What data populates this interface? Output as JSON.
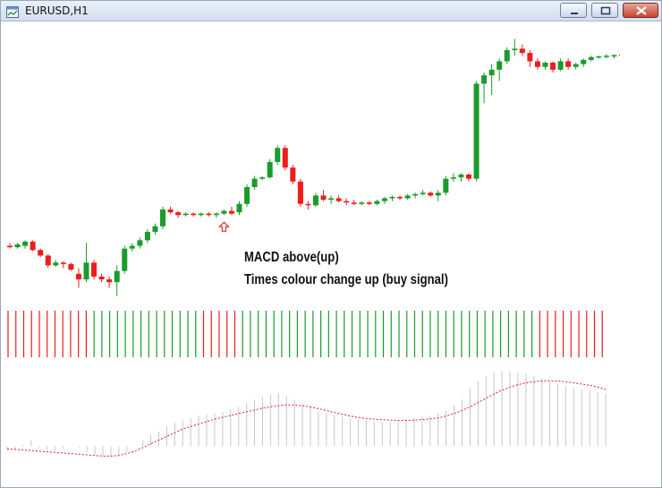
{
  "window": {
    "title": "EURUSD,H1",
    "controls": [
      "minimize",
      "maximize",
      "close"
    ],
    "icons": {
      "app": "chart-window-icon",
      "min": "minimize-icon",
      "max": "maximize-icon",
      "close": "close-icon"
    }
  },
  "colors": {
    "bull": "#1a9b2b",
    "bear": "#ee1c1c",
    "histogram_gray": "#c8c8c8",
    "signal_line": "#e02020"
  },
  "annotations": {
    "line1": "MACD above(up)",
    "line2": "Times colour change up (buy signal)"
  },
  "chart_data": [
    {
      "type": "candlestick",
      "symbol": "EURUSD",
      "timeframe": "H1",
      "description_values": "relative price level 0-100 (no price axis shown)",
      "candles": [
        {
          "o": 40,
          "h": 41,
          "l": 39,
          "c": 39.5
        },
        {
          "o": 39.5,
          "h": 41,
          "l": 39,
          "c": 40.5
        },
        {
          "o": 40,
          "h": 42,
          "l": 39,
          "c": 41.5
        },
        {
          "o": 41.5,
          "h": 42,
          "l": 38,
          "c": 38.5
        },
        {
          "o": 38.5,
          "h": 39,
          "l": 36,
          "c": 36.5
        },
        {
          "o": 36.5,
          "h": 37,
          "l": 32,
          "c": 33
        },
        {
          "o": 33,
          "h": 35,
          "l": 32.5,
          "c": 34
        },
        {
          "o": 34,
          "h": 34.5,
          "l": 32,
          "c": 33.5
        },
        {
          "o": 33.5,
          "h": 34,
          "l": 31,
          "c": 31.5
        },
        {
          "o": 30,
          "h": 32,
          "l": 25,
          "c": 28
        },
        {
          "o": 28,
          "h": 41,
          "l": 27,
          "c": 34
        },
        {
          "o": 34,
          "h": 35,
          "l": 28,
          "c": 29
        },
        {
          "o": 29,
          "h": 30,
          "l": 27,
          "c": 28
        },
        {
          "o": 28,
          "h": 29,
          "l": 25,
          "c": 27
        },
        {
          "o": 27,
          "h": 33,
          "l": 22,
          "c": 31
        },
        {
          "o": 31,
          "h": 40,
          "l": 30,
          "c": 39
        },
        {
          "o": 39,
          "h": 41,
          "l": 38,
          "c": 40
        },
        {
          "o": 40,
          "h": 43,
          "l": 39,
          "c": 42
        },
        {
          "o": 42,
          "h": 46,
          "l": 41,
          "c": 45
        },
        {
          "o": 45,
          "h": 48,
          "l": 44,
          "c": 47
        },
        {
          "o": 47,
          "h": 54,
          "l": 46,
          "c": 53
        },
        {
          "o": 53,
          "h": 54,
          "l": 51.5,
          "c": 52
        },
        {
          "o": 52,
          "h": 52.5,
          "l": 50,
          "c": 51
        },
        {
          "o": 51,
          "h": 52,
          "l": 50.5,
          "c": 51.5
        },
        {
          "o": 51.5,
          "h": 52,
          "l": 50.5,
          "c": 51
        },
        {
          "o": 51,
          "h": 52,
          "l": 50.5,
          "c": 51.5
        },
        {
          "o": 51.5,
          "h": 52,
          "l": 50.5,
          "c": 51
        },
        {
          "o": 51,
          "h": 52,
          "l": 50,
          "c": 51.5
        },
        {
          "o": 51.5,
          "h": 53,
          "l": 51,
          "c": 52.5
        },
        {
          "o": 52.5,
          "h": 54,
          "l": 51,
          "c": 51.5
        },
        {
          "o": 52,
          "h": 56,
          "l": 51,
          "c": 55
        },
        {
          "o": 55,
          "h": 62,
          "l": 54,
          "c": 61
        },
        {
          "o": 61,
          "h": 65,
          "l": 60,
          "c": 64
        },
        {
          "o": 64,
          "h": 65,
          "l": 63.5,
          "c": 64.5
        },
        {
          "o": 64.5,
          "h": 71,
          "l": 64,
          "c": 70
        },
        {
          "o": 70,
          "h": 76,
          "l": 69,
          "c": 75
        },
        {
          "o": 75,
          "h": 76,
          "l": 67,
          "c": 68
        },
        {
          "o": 68,
          "h": 69,
          "l": 62,
          "c": 63
        },
        {
          "o": 63,
          "h": 64,
          "l": 54,
          "c": 55
        },
        {
          "o": 55,
          "h": 56,
          "l": 53,
          "c": 54.5
        },
        {
          "o": 54.5,
          "h": 59,
          "l": 54,
          "c": 58
        },
        {
          "o": 58,
          "h": 60,
          "l": 56,
          "c": 56.5
        },
        {
          "o": 56.5,
          "h": 58,
          "l": 55,
          "c": 57
        },
        {
          "o": 57,
          "h": 58,
          "l": 55.5,
          "c": 56
        },
        {
          "o": 56,
          "h": 57,
          "l": 54.5,
          "c": 55.5
        },
        {
          "o": 55.5,
          "h": 56.5,
          "l": 54.5,
          "c": 55
        },
        {
          "o": 55,
          "h": 56,
          "l": 54.5,
          "c": 55.5
        },
        {
          "o": 55.5,
          "h": 56,
          "l": 54.5,
          "c": 55
        },
        {
          "o": 55,
          "h": 56.5,
          "l": 54.5,
          "c": 56
        },
        {
          "o": 56,
          "h": 57.5,
          "l": 55,
          "c": 57
        },
        {
          "o": 57,
          "h": 58,
          "l": 56,
          "c": 57.5
        },
        {
          "o": 57.5,
          "h": 58,
          "l": 56.5,
          "c": 57
        },
        {
          "o": 57,
          "h": 58.5,
          "l": 56.5,
          "c": 58
        },
        {
          "o": 58,
          "h": 59,
          "l": 57,
          "c": 58.5
        },
        {
          "o": 58.5,
          "h": 60,
          "l": 58,
          "c": 59
        },
        {
          "o": 59,
          "h": 59.5,
          "l": 57.5,
          "c": 58
        },
        {
          "o": 58,
          "h": 60,
          "l": 56,
          "c": 59
        },
        {
          "o": 59,
          "h": 65,
          "l": 58,
          "c": 64
        },
        {
          "o": 64,
          "h": 66,
          "l": 63,
          "c": 64.5
        },
        {
          "o": 64.5,
          "h": 66,
          "l": 63,
          "c": 65.5
        },
        {
          "o": 65.5,
          "h": 66,
          "l": 63,
          "c": 64
        },
        {
          "o": 64,
          "h": 99,
          "l": 63,
          "c": 98
        },
        {
          "o": 98,
          "h": 102,
          "l": 91,
          "c": 101
        },
        {
          "o": 101,
          "h": 105,
          "l": 94,
          "c": 103
        },
        {
          "o": 103,
          "h": 107,
          "l": 99,
          "c": 106
        },
        {
          "o": 106,
          "h": 111,
          "l": 105,
          "c": 110
        },
        {
          "o": 110,
          "h": 114,
          "l": 108,
          "c": 110.5
        },
        {
          "o": 110.5,
          "h": 112,
          "l": 108,
          "c": 109
        },
        {
          "o": 109,
          "h": 110,
          "l": 104,
          "c": 106
        },
        {
          "o": 106,
          "h": 107,
          "l": 103,
          "c": 104
        },
        {
          "o": 104,
          "h": 106,
          "l": 103,
          "c": 105.5
        },
        {
          "o": 105.5,
          "h": 106,
          "l": 102,
          "c": 103
        },
        {
          "o": 103,
          "h": 107,
          "l": 102.5,
          "c": 106
        },
        {
          "o": 106,
          "h": 107,
          "l": 103,
          "c": 104
        },
        {
          "o": 104,
          "h": 105.5,
          "l": 103,
          "c": 105
        },
        {
          "o": 105,
          "h": 107,
          "l": 104,
          "c": 106.5
        },
        {
          "o": 106.5,
          "h": 108,
          "l": 106,
          "c": 107.5
        },
        {
          "o": 107.5,
          "h": 108,
          "l": 107,
          "c": 107.8
        },
        {
          "o": 107.8,
          "h": 108.5,
          "l": 107,
          "c": 108
        },
        {
          "o": 108,
          "h": 108.5,
          "l": 107,
          "c": 108.2
        },
        {
          "o": 108.2,
          "h": 108.8,
          "l": 107.5,
          "c": 108.5
        },
        {
          "o": 108.5,
          "h": 111,
          "l": 106,
          "c": 107
        },
        {
          "o": 107,
          "h": 117,
          "l": 106,
          "c": 114
        }
      ],
      "markers": [
        {
          "candle_index": 28,
          "type": "buy-arrow",
          "color": "#ee1c1c"
        }
      ]
    },
    {
      "type": "bar",
      "name": "colour strip",
      "values_colors": [
        "bear",
        "bear",
        "bear",
        "bear",
        "bear",
        "bear",
        "bear",
        "bear",
        "bear",
        "bear",
        "bear",
        "bull",
        "bull",
        "bull",
        "bull",
        "bull",
        "bull",
        "bull",
        "bull",
        "bull",
        "bull",
        "bull",
        "bull",
        "bull",
        "bull",
        "bear",
        "bear",
        "bear",
        "bear",
        "bear",
        "bull",
        "bull",
        "bull",
        "bull",
        "bull",
        "bull",
        "bull",
        "bull",
        "bull",
        "bull",
        "bull",
        "bull",
        "bull",
        "bull",
        "bull",
        "bull",
        "bull",
        "bull",
        "bull",
        "bull",
        "bull",
        "bull",
        "bull",
        "bull",
        "bull",
        "bull",
        "bull",
        "bull",
        "bull",
        "bull",
        "bull",
        "bull",
        "bull",
        "bull",
        "bull",
        "bull",
        "bull",
        "bull",
        "bear",
        "bear",
        "bear",
        "bear",
        "bear",
        "bear",
        "bear",
        "bear",
        "bear"
      ]
    },
    {
      "type": "bar",
      "name": "MACD histogram with signal line",
      "histogram": [
        -1.9,
        -1.7,
        -1.4,
        -1.0,
        -1.6,
        -1.8,
        -1.9,
        -1.7,
        -1.5,
        -1.6,
        -2.0,
        -2.2,
        -2.3,
        -2.4,
        -2.3,
        -2.0,
        -1.5,
        -1.0,
        -0.6,
        -0.3,
        0.1,
        0.4,
        0.6,
        0.8,
        1.0,
        1.1,
        1.2,
        1.3,
        1.5,
        1.7,
        2.0,
        2.3,
        2.5,
        2.7,
        2.8,
        2.6,
        2.3,
        2.0,
        1.7,
        1.4,
        1.2,
        1.0,
        0.9,
        0.8,
        0.7,
        0.6,
        0.5,
        0.5,
        0.5,
        0.6,
        0.7,
        0.8,
        0.9,
        1.0,
        1.2,
        1.4,
        1.8,
        2.3,
        3.2,
        3.8,
        4.2,
        4.5,
        4.6,
        4.6,
        4.5,
        4.4,
        4.2,
        4.0,
        3.8,
        3.6,
        3.4,
        3.2,
        3.1,
        3.0,
        2.9,
        2.8
      ],
      "signal": [
        -1.7,
        -1.75,
        -1.8,
        -1.85,
        -1.9,
        -1.95,
        -2.0,
        -2.05,
        -2.1,
        -2.15,
        -2.2,
        -2.25,
        -2.3,
        -2.3,
        -2.25,
        -2.1,
        -1.9,
        -1.6,
        -1.3,
        -1.0,
        -0.7,
        -0.4,
        -0.1,
        0.1,
        0.3,
        0.5,
        0.7,
        0.85,
        1.0,
        1.15,
        1.3,
        1.45,
        1.6,
        1.7,
        1.8,
        1.85,
        1.85,
        1.8,
        1.7,
        1.55,
        1.4,
        1.25,
        1.1,
        0.95,
        0.85,
        0.75,
        0.7,
        0.65,
        0.62,
        0.6,
        0.6,
        0.62,
        0.66,
        0.72,
        0.8,
        0.95,
        1.15,
        1.4,
        1.7,
        2.05,
        2.4,
        2.75,
        3.05,
        3.3,
        3.5,
        3.65,
        3.75,
        3.8,
        3.82,
        3.8,
        3.75,
        3.65,
        3.55,
        3.45,
        3.3,
        3.1
      ]
    }
  ]
}
